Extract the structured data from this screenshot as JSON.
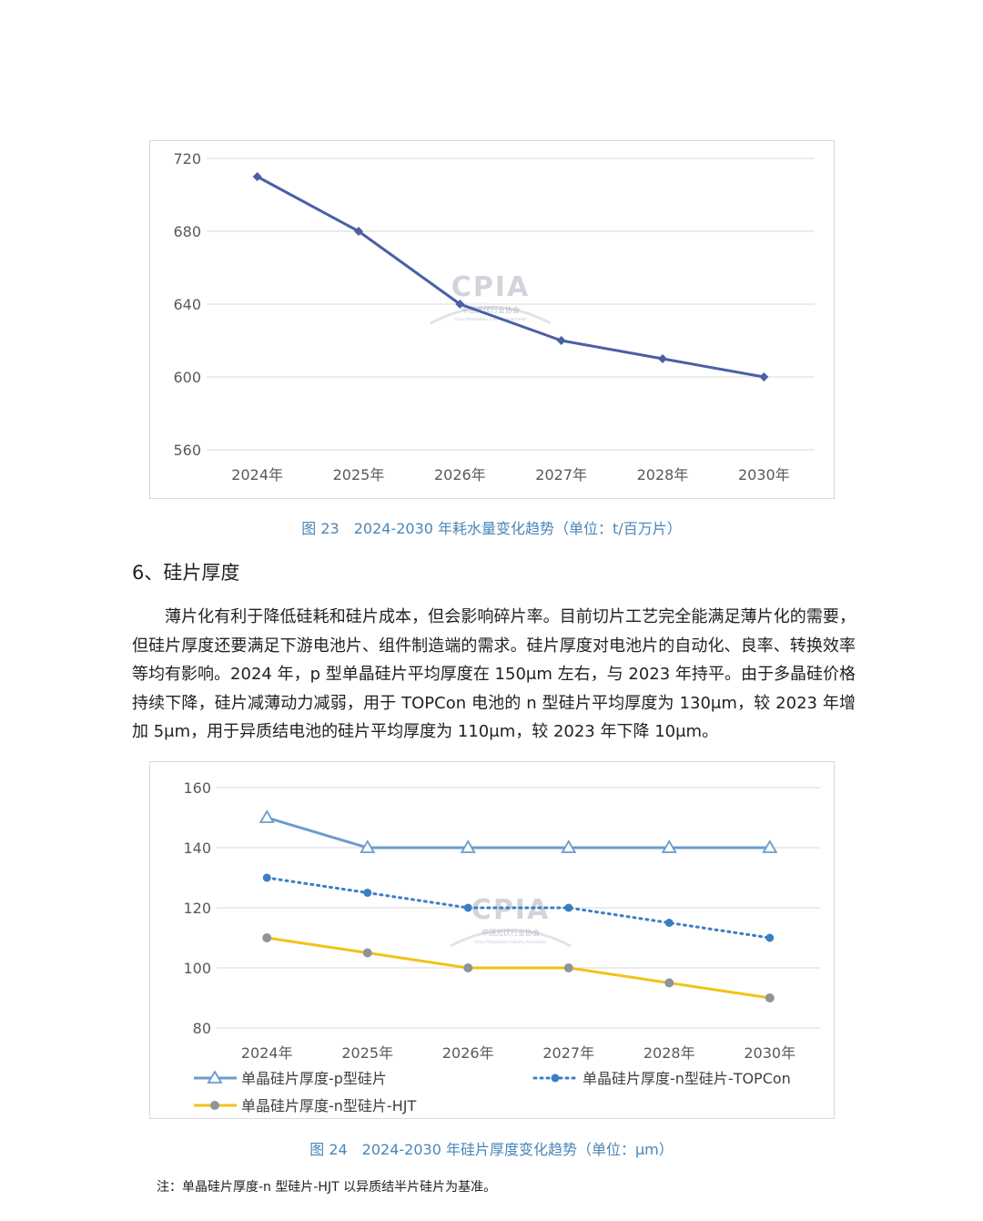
{
  "chart_data": [
    {
      "type": "line",
      "categories": [
        "2024年",
        "2025年",
        "2026年",
        "2027年",
        "2028年",
        "2030年"
      ],
      "series": [
        {
          "values": [
            710,
            680,
            640,
            620,
            610,
            600
          ],
          "color": "#4a5fa5",
          "marker": "diamond",
          "line": "solid"
        }
      ],
      "ylim": [
        560,
        720
      ],
      "yticks": [
        "560",
        "600",
        "640",
        "680",
        "720"
      ],
      "grid": true,
      "legend": "none",
      "title": "",
      "xlabel": "",
      "ylabel": ""
    },
    {
      "type": "line",
      "categories": [
        "2024年",
        "2025年",
        "2026年",
        "2027年",
        "2028年",
        "2030年"
      ],
      "series": [
        {
          "name": "单晶硅片厚度-p型硅片",
          "values": [
            150,
            140,
            140,
            140,
            140,
            140
          ],
          "color": "#6b9ccd",
          "marker": "triangle-open",
          "line": "solid"
        },
        {
          "name": "单晶硅片厚度-n型硅片-TOPCon",
          "values": [
            130,
            125,
            120,
            120,
            115,
            110
          ],
          "color": "#3a7fc4",
          "marker": "circle",
          "line": "dotted"
        },
        {
          "name": "单晶硅片厚度-n型硅片-HJT",
          "values": [
            110,
            105,
            100,
            100,
            95,
            90
          ],
          "color": "#f2c217",
          "marker": "circle-gray",
          "line": "solid"
        }
      ],
      "ylim": [
        80,
        160
      ],
      "yticks": [
        "80",
        "100",
        "120",
        "140",
        "160"
      ],
      "grid": true,
      "legend": "bottom",
      "title": "",
      "xlabel": "",
      "ylabel": ""
    }
  ],
  "watermark": {
    "logo": "CPIA",
    "cn": "中国光伏行业协会",
    "en": "China Photovoltaic Industry Association"
  },
  "captions": {
    "fig23": "图 23　2024-2030 年耗水量变化趋势（单位：t/百万片）",
    "fig24": "图 24　2024-2030 年硅片厚度变化趋势（单位：μm）"
  },
  "section": {
    "heading": "6、硅片厚度",
    "paragraph": "薄片化有利于降低硅耗和硅片成本，但会影响碎片率。目前切片工艺完全能满足薄片化的需要，但硅片厚度还要满足下游电池片、组件制造端的需求。硅片厚度对电池片的自动化、良率、转换效率等均有影响。2024 年，p 型单晶硅片平均厚度在 150μm 左右，与 2023 年持平。由于多晶硅价格持续下降，硅片减薄动力减弱，用于 TOPCon 电池的 n 型硅片平均厚度为 130μm，较 2023 年增加 5μm，用于异质结电池的硅片平均厚度为 110μm，较 2023 年下降 10μm。"
  },
  "footnote": "注：单晶硅片厚度-n 型硅片-HJT 以异质结半片硅片为基准。"
}
